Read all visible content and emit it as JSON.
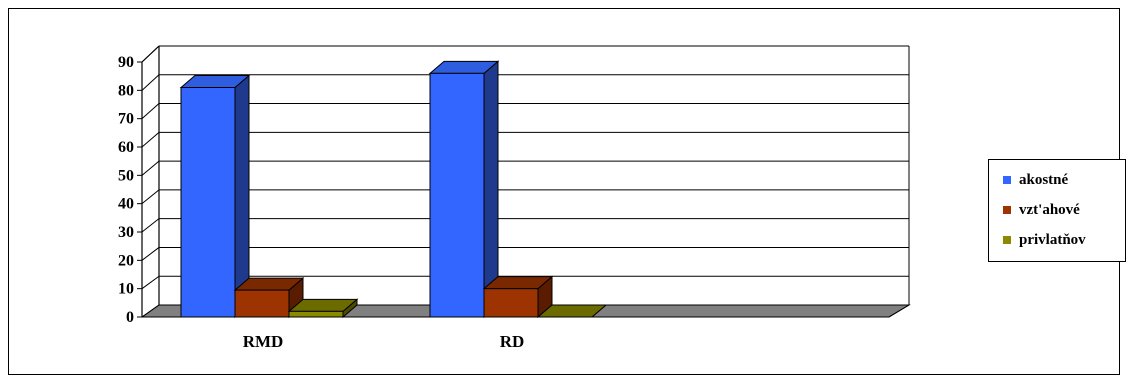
{
  "chart_data": {
    "type": "bar",
    "categories": [
      "RMD",
      "RD"
    ],
    "series": [
      {
        "name": "akostné",
        "values": [
          81,
          86
        ],
        "color": "#3366ff",
        "side": "#1f3a8c",
        "top": "#2f5de0"
      },
      {
        "name": "vzt'ahové",
        "values": [
          9.5,
          10
        ],
        "color": "#9c3300",
        "side": "#5a1c00",
        "top": "#7a2800"
      },
      {
        "name": "privlatňov",
        "values": [
          2,
          0
        ],
        "color": "#8a8a00",
        "side": "#4c4c00",
        "top": "#6b6b00"
      }
    ],
    "yticks": [
      0,
      10,
      20,
      30,
      40,
      50,
      60,
      70,
      80,
      90
    ],
    "ylim": [
      0,
      90
    ],
    "grid": true,
    "legend_position": "right",
    "three_d": true
  },
  "legend": {
    "items": [
      {
        "label": "akostné",
        "color": "#3366ff"
      },
      {
        "label": "vzt'ahové",
        "color": "#9c3300"
      },
      {
        "label": "privlatňov",
        "color": "#8a8a00"
      }
    ]
  }
}
